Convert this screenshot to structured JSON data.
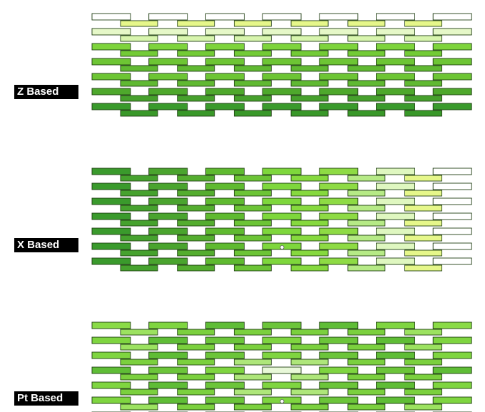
{
  "panels": [
    {
      "label": "Z Based",
      "colors": {
        "back": [
          "#ffffff",
          "#e6f8c8",
          "#7ed43c",
          "#6dc534",
          "#4ea82c",
          "#3a9a2c"
        ],
        "front": [
          "#e6f78a",
          "#d8f5ae",
          "#73cb36",
          "#60b932",
          "#46a02c",
          "#399829"
        ]
      },
      "markers": []
    },
    {
      "label": "X Based",
      "colors": {
        "back": [
          "#3a9a2c",
          "#4aa42e",
          "#5fba30",
          "#7ed73c",
          "#8edb44",
          "#dff7c0",
          "#ffffff"
        ],
        "front": [
          "#46a22e",
          "#54ad2f",
          "#6cc436",
          "#86d93e",
          "#b6ea86",
          "#e6f78a"
        ]
      },
      "markers": [
        {
          "row": 5,
          "col": 3,
          "dx": 0.35
        }
      ]
    },
    {
      "label": "Pt Based",
      "colors": {
        "back": [
          "#e8f8d8",
          "#7fd540",
          "#6cc53a",
          "#5fbd36",
          "#7fd540",
          "#8adb46",
          "#f4fced"
        ],
        "front": [
          "#f2fbe9",
          "#aee67a",
          "#7bd03e",
          "#7bd03e",
          "#9ce260",
          "#d6f4b4"
        ]
      },
      "markers": [
        {
          "row": 5,
          "col": 3,
          "dx": 0.35
        }
      ],
      "special": [
        {
          "row": 6,
          "col": 6,
          "color": "#eef542"
        }
      ]
    }
  ]
}
